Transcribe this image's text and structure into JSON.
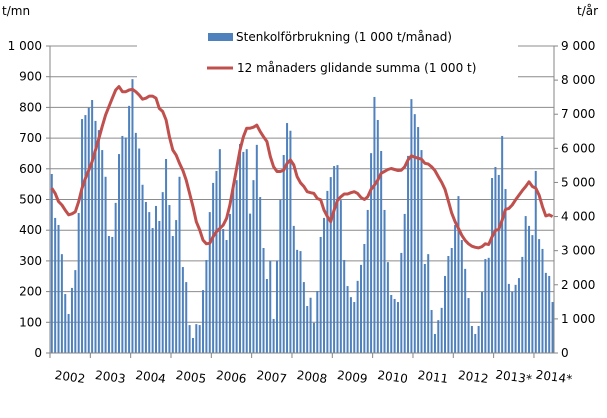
{
  "chart_data": {
    "type": "bar+line",
    "left_axis": {
      "unit_label": "t/mn",
      "range": [
        0,
        1000
      ],
      "ticks": [
        "0",
        "100",
        "200",
        "300",
        "400",
        "500",
        "600",
        "700",
        "800",
        "900",
        "1 000"
      ]
    },
    "right_axis": {
      "unit_label": "t/år",
      "range": [
        0,
        9000
      ],
      "ticks": [
        "0",
        "1 000",
        "2 000",
        "3 000",
        "4 000",
        "5 000",
        "6 000",
        "7 000",
        "8 000",
        "9 000"
      ]
    },
    "x_tick_labels": [
      "2002",
      "2003",
      "2004",
      "2005",
      "2006",
      "2007",
      "2008",
      "2009",
      "2010",
      "2011",
      "2012",
      "2013*",
      "2014*"
    ],
    "grid": true,
    "legend_position": "top-center",
    "colors": {
      "bars": "#4f81bd",
      "line": "#c0504d",
      "grid": "#8c8c8c"
    },
    "series": [
      {
        "name": "Stenkolförbrukning (1 000 t/månad)",
        "type": "bar",
        "axis": "left",
        "values_by_year": {
          "2002": [
            583,
            440,
            417,
            322,
            192,
            127,
            212,
            270,
            456,
            762,
            775,
            799
          ],
          "2003": [
            824,
            756,
            726,
            661,
            574,
            381,
            378,
            489,
            648,
            707,
            702,
            805
          ],
          "2004": [
            892,
            717,
            666,
            548,
            492,
            459,
            407,
            479,
            430,
            524,
            632,
            482
          ],
          "2005": [
            381,
            433,
            574,
            280,
            231,
            91,
            49,
            94,
            91,
            205,
            303,
            459
          ],
          "2006": [
            554,
            593,
            664,
            404,
            368,
            453,
            537,
            563,
            681,
            655,
            664,
            454
          ],
          "2007": [
            563,
            678,
            508,
            342,
            241,
            301,
            111,
            301,
            499,
            645,
            749,
            724
          ],
          "2008": [
            414,
            336,
            332,
            231,
            153,
            180,
            98,
            202,
            378,
            440,
            528,
            573
          ],
          "2009": [
            609,
            612,
            498,
            303,
            218,
            182,
            166,
            235,
            287,
            355,
            466,
            651
          ],
          "2010": [
            834,
            759,
            658,
            466,
            296,
            189,
            176,
            166,
            326,
            453,
            642,
            827
          ],
          "2011": [
            778,
            736,
            661,
            290,
            322,
            140,
            62,
            107,
            147,
            251,
            316,
            342
          ],
          "2012": [
            417,
            511,
            368,
            274,
            179,
            88,
            62,
            88,
            199,
            306,
            310,
            570
          ],
          "2013*": [
            606,
            580,
            707,
            534,
            225,
            200,
            222,
            244,
            313,
            446,
            414,
            384
          ],
          "2014*": [
            593,
            371,
            339,
            261,
            251,
            166
          ]
        }
      },
      {
        "name": "12 månaders glidande summa (1 000 t)",
        "type": "line",
        "axis": "right",
        "values_by_year": {
          "2002": [
            4830,
            4680,
            4440,
            4340,
            4190,
            4050,
            4080,
            4140,
            4440,
            4830,
            5120,
            5360
          ],
          "2003": [
            5610,
            5950,
            6290,
            6640,
            6980,
            7220,
            7470,
            7710,
            7810,
            7660,
            7660,
            7710
          ],
          "2004": [
            7730,
            7660,
            7560,
            7440,
            7470,
            7530,
            7530,
            7470,
            7170,
            7080,
            6830,
            6340
          ],
          "2005": [
            5950,
            5800,
            5560,
            5350,
            5070,
            4680,
            4290,
            3850,
            3610,
            3310,
            3200,
            3220
          ],
          "2006": [
            3410,
            3560,
            3650,
            3750,
            3950,
            4340,
            4880,
            5410,
            5950,
            6340,
            6590,
            6590
          ],
          "2007": [
            6620,
            6680,
            6490,
            6340,
            6200,
            5760,
            5460,
            5320,
            5320,
            5360,
            5560,
            5660
          ],
          "2008": [
            5510,
            5170,
            4990,
            4880,
            4730,
            4700,
            4680,
            4530,
            4490,
            4190,
            4000,
            3850
          ],
          "2009": [
            4190,
            4470,
            4580,
            4660,
            4660,
            4700,
            4730,
            4680,
            4560,
            4500,
            4580,
            4800
          ],
          "2010": [
            4920,
            5070,
            5270,
            5320,
            5380,
            5410,
            5380,
            5350,
            5360,
            5460,
            5660,
            5780
          ],
          "2011": [
            5740,
            5710,
            5680,
            5560,
            5540,
            5460,
            5350,
            5170,
            5000,
            4800,
            4450,
            4100
          ],
          "2012": [
            3850,
            3650,
            3450,
            3300,
            3200,
            3130,
            3100,
            3080,
            3120,
            3200,
            3180,
            3410
          ],
          "2013*": [
            3590,
            3630,
            3900,
            4210,
            4240,
            4340,
            4490,
            4630,
            4760,
            4880,
            5020,
            4880
          ],
          "2014*": [
            4830,
            4630,
            4290,
            4020,
            4050,
            4000
          ]
        }
      }
    ]
  }
}
